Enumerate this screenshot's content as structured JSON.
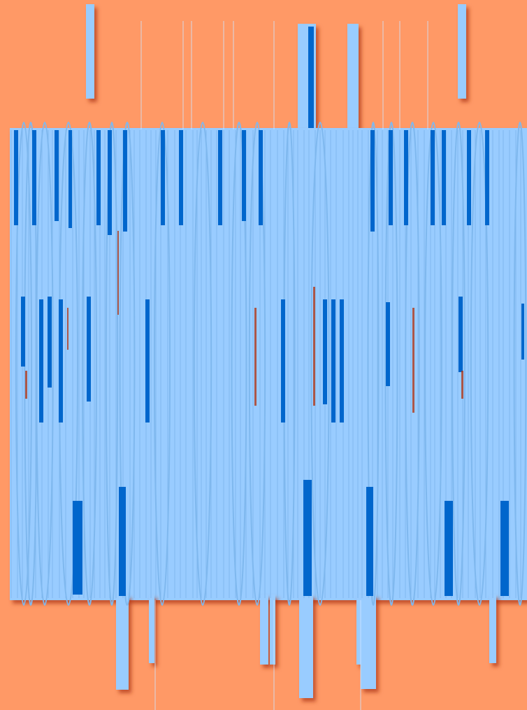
{
  "palette": {
    "background": "#ff9966",
    "light_blue": "#99ccff",
    "dark_blue": "#0066cc",
    "shadow": "#b03a1a"
  },
  "content": {
    "description_visible_text": ""
  }
}
